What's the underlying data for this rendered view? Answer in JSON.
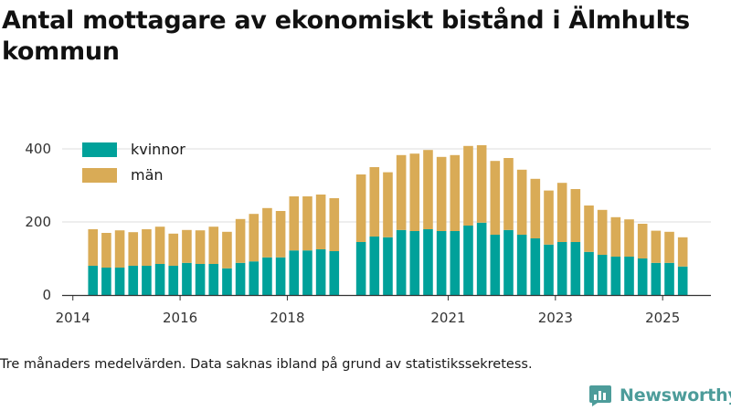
{
  "title": "Antal mottagare av ekonomiskt bistånd i Älmhults kommun",
  "footnote": "Tre månaders medelvärden. Data saknas ibland på grund av statistikssekretess.",
  "brand": {
    "name": "Newsworthy",
    "color": "#4d9c9a",
    "icon": "newsworthy-logo-icon"
  },
  "colors": {
    "kvinnor": "#00a19a",
    "man": "#d9ab56",
    "grid": "#dddddd",
    "axis": "#333333"
  },
  "chart_data": {
    "type": "bar",
    "stacked": true,
    "title": "",
    "xlabel": "",
    "ylabel": "",
    "ylim": [
      0,
      450
    ],
    "yticks": [
      0,
      200,
      400
    ],
    "xticks": [
      {
        "label": "2014",
        "x": 2014.0
      },
      {
        "label": "2016",
        "x": 2016.0
      },
      {
        "label": "2018",
        "x": 2018.0
      },
      {
        "label": "2021",
        "x": 2021.0
      },
      {
        "label": "2023",
        "x": 2023.0
      },
      {
        "label": "2025",
        "x": 2025.0
      }
    ],
    "grid": true,
    "legend": {
      "position": "top-left"
    },
    "x": [
      2014.375,
      2014.625,
      2014.875,
      2015.125,
      2015.375,
      2015.625,
      2015.875,
      2016.125,
      2016.375,
      2016.625,
      2016.875,
      2017.125,
      2017.375,
      2017.625,
      2017.875,
      2018.125,
      2018.375,
      2018.625,
      2018.875,
      2019.375,
      2019.625,
      2019.875,
      2020.125,
      2020.375,
      2020.625,
      2020.875,
      2021.125,
      2021.375,
      2021.625,
      2021.875,
      2022.125,
      2022.375,
      2022.625,
      2022.875,
      2023.125,
      2023.375,
      2023.625,
      2023.875,
      2024.125,
      2024.375,
      2024.625,
      2024.875,
      2025.125,
      2025.375
    ],
    "series": [
      {
        "name": "kvinnor",
        "values": [
          80,
          75,
          75,
          80,
          80,
          85,
          80,
          88,
          85,
          85,
          73,
          88,
          92,
          103,
          103,
          122,
          122,
          125,
          120,
          145,
          160,
          158,
          178,
          175,
          180,
          175,
          175,
          190,
          198,
          165,
          178,
          165,
          155,
          138,
          145,
          145,
          118,
          110,
          105,
          105,
          100,
          88,
          88,
          78
        ]
      },
      {
        "name": "män",
        "values": [
          100,
          95,
          102,
          92,
          100,
          102,
          88,
          90,
          92,
          102,
          100,
          120,
          130,
          135,
          127,
          148,
          148,
          150,
          145,
          185,
          190,
          178,
          205,
          212,
          217,
          203,
          208,
          218,
          212,
          202,
          197,
          178,
          163,
          148,
          162,
          145,
          127,
          123,
          108,
          102,
          95,
          88,
          85,
          80
        ]
      }
    ]
  }
}
